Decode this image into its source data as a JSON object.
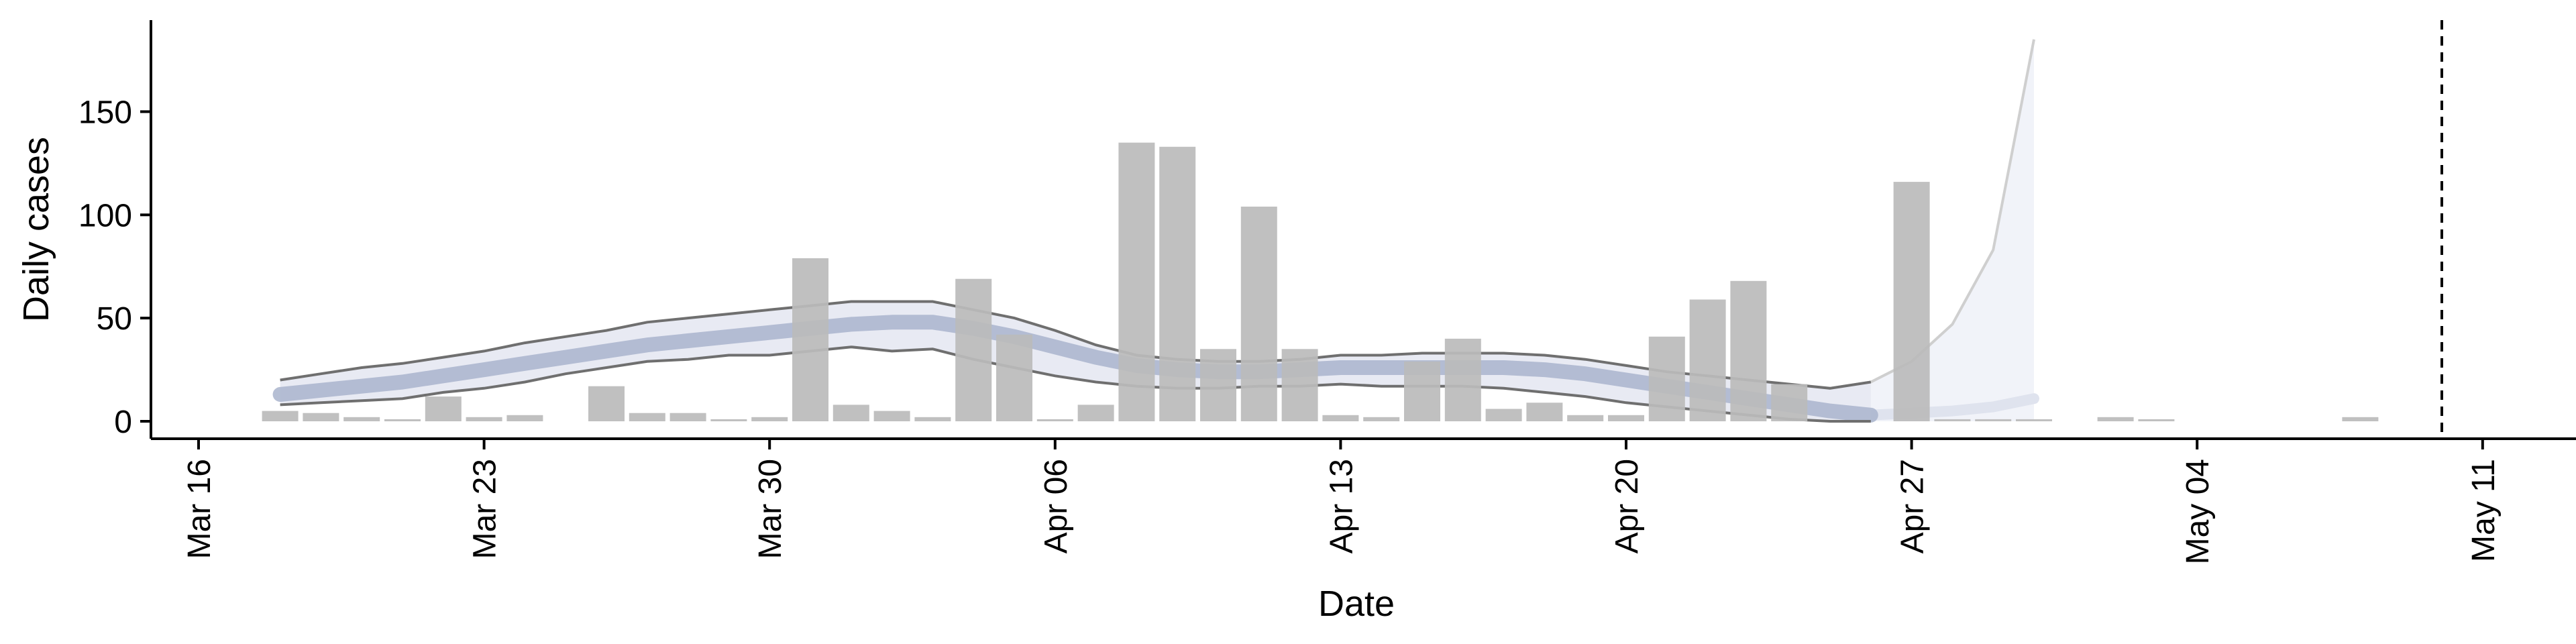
{
  "chart_data": {
    "type": "bar",
    "xlabel": "Date",
    "ylabel": "Daily cases",
    "x_start": "Mar 18",
    "x_ticks": [
      "Mar 16",
      "Mar 23",
      "Mar 30",
      "Apr 06",
      "Apr 13",
      "Apr 20",
      "Apr 27",
      "May 04",
      "May 11"
    ],
    "y_ticks": [
      0,
      50,
      100,
      150
    ],
    "ylim": [
      -9,
      194
    ],
    "grid": false,
    "colors": {
      "bars": "#bbbbbb",
      "band_fill": "#e8eaf3",
      "band_edge": "#6f6f6f",
      "median": "#a9b4cc",
      "forecast_fill": "#f1f3f9",
      "forecast_edge": "#cfcfcf",
      "vline": "#000000",
      "axis": "#000000"
    },
    "daily_cases": [
      {
        "date": "Mar 18",
        "value": 5
      },
      {
        "date": "Mar 19",
        "value": 4
      },
      {
        "date": "Mar 20",
        "value": 2
      },
      {
        "date": "Mar 21",
        "value": 1
      },
      {
        "date": "Mar 22",
        "value": 12
      },
      {
        "date": "Mar 23",
        "value": 2
      },
      {
        "date": "Mar 24",
        "value": 3
      },
      {
        "date": "Mar 26",
        "value": 17
      },
      {
        "date": "Mar 27",
        "value": 4
      },
      {
        "date": "Mar 28",
        "value": 4
      },
      {
        "date": "Mar 29",
        "value": 1
      },
      {
        "date": "Mar 30",
        "value": 2
      },
      {
        "date": "Mar 31",
        "value": 79
      },
      {
        "date": "Apr 01",
        "value": 8
      },
      {
        "date": "Apr 02",
        "value": 5
      },
      {
        "date": "Apr 03",
        "value": 2
      },
      {
        "date": "Apr 04",
        "value": 69
      },
      {
        "date": "Apr 05",
        "value": 42
      },
      {
        "date": "Apr 06",
        "value": 1
      },
      {
        "date": "Apr 07",
        "value": 8
      },
      {
        "date": "Apr 08",
        "value": 135
      },
      {
        "date": "Apr 09",
        "value": 133
      },
      {
        "date": "Apr 10",
        "value": 35
      },
      {
        "date": "Apr 11",
        "value": 104
      },
      {
        "date": "Apr 12",
        "value": 35
      },
      {
        "date": "Apr 13",
        "value": 3
      },
      {
        "date": "Apr 14",
        "value": 2
      },
      {
        "date": "Apr 15",
        "value": 29
      },
      {
        "date": "Apr 16",
        "value": 40
      },
      {
        "date": "Apr 17",
        "value": 6
      },
      {
        "date": "Apr 18",
        "value": 9
      },
      {
        "date": "Apr 19",
        "value": 3
      },
      {
        "date": "Apr 20",
        "value": 3
      },
      {
        "date": "Apr 21",
        "value": 41
      },
      {
        "date": "Apr 22",
        "value": 59
      },
      {
        "date": "Apr 23",
        "value": 68
      },
      {
        "date": "Apr 24",
        "value": 18
      },
      {
        "date": "Apr 27",
        "value": 116
      },
      {
        "date": "Apr 28",
        "value": 1
      },
      {
        "date": "Apr 29",
        "value": 1
      },
      {
        "date": "Apr 30",
        "value": 1
      },
      {
        "date": "May 02",
        "value": 2
      },
      {
        "date": "May 03",
        "value": 1
      },
      {
        "date": "May 08",
        "value": 2
      }
    ],
    "estimate": {
      "dates": [
        "Mar 18",
        "Mar 19",
        "Mar 20",
        "Mar 21",
        "Mar 22",
        "Mar 23",
        "Mar 24",
        "Mar 25",
        "Mar 26",
        "Mar 27",
        "Mar 28",
        "Mar 29",
        "Mar 30",
        "Mar 31",
        "Apr 01",
        "Apr 02",
        "Apr 03",
        "Apr 04",
        "Apr 05",
        "Apr 06",
        "Apr 07",
        "Apr 08",
        "Apr 09",
        "Apr 10",
        "Apr 11",
        "Apr 12",
        "Apr 13",
        "Apr 14",
        "Apr 15",
        "Apr 16",
        "Apr 17",
        "Apr 18",
        "Apr 19",
        "Apr 20",
        "Apr 21",
        "Apr 22",
        "Apr 23",
        "Apr 24",
        "Apr 25",
        "Apr 26"
      ],
      "upper": [
        20,
        23,
        26,
        28,
        31,
        34,
        38,
        41,
        44,
        48,
        50,
        52,
        54,
        56,
        58,
        58,
        58,
        54,
        50,
        44,
        37,
        32,
        30,
        29,
        29,
        30,
        32,
        32,
        33,
        33,
        33,
        32,
        30,
        27,
        24,
        22,
        20,
        18,
        16,
        19
      ],
      "median": [
        13,
        15,
        17,
        19,
        22,
        25,
        28,
        31,
        34,
        37,
        39,
        41,
        43,
        45,
        47,
        48,
        48,
        45,
        41,
        36,
        31,
        27,
        25,
        24,
        24,
        25,
        26,
        26,
        26,
        26,
        26,
        25,
        23,
        20,
        17,
        14,
        11,
        8,
        5,
        3
      ],
      "lower": [
        8,
        9,
        10,
        11,
        14,
        16,
        19,
        23,
        26,
        29,
        30,
        32,
        32,
        34,
        36,
        34,
        35,
        30,
        26,
        22,
        19,
        17,
        16,
        16,
        17,
        17,
        18,
        17,
        17,
        17,
        16,
        14,
        12,
        9,
        7,
        5,
        3,
        1,
        0,
        0
      ]
    },
    "forecast": {
      "dates": [
        "Apr 25",
        "Apr 26",
        "Apr 27",
        "Apr 28",
        "Apr 29",
        "Apr 30"
      ],
      "upper": [
        16,
        19,
        29,
        47,
        83,
        185
      ],
      "median": [
        4,
        3,
        4,
        5,
        7,
        11
      ],
      "lower": [
        0,
        0,
        0,
        0,
        0,
        0
      ]
    },
    "vline_date": "May 10"
  }
}
